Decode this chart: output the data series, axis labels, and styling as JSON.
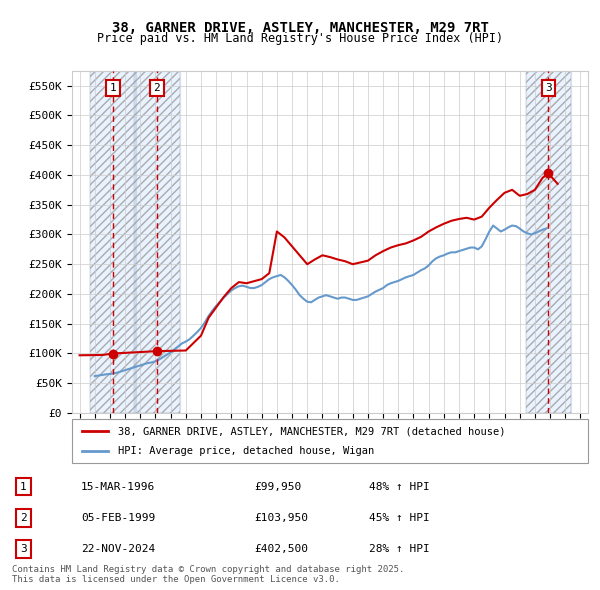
{
  "title": "38, GARNER DRIVE, ASTLEY, MANCHESTER, M29 7RT",
  "subtitle": "Price paid vs. HM Land Registry's House Price Index (HPI)",
  "legend_line1": "38, GARNER DRIVE, ASTLEY, MANCHESTER, M29 7RT (detached house)",
  "legend_line2": "HPI: Average price, detached house, Wigan",
  "sales": [
    {
      "num": 1,
      "date_label": "15-MAR-1996",
      "date_year": 1996.21,
      "price": 99950,
      "pct": "48%",
      "dir": "↑"
    },
    {
      "num": 2,
      "date_label": "05-FEB-1999",
      "date_year": 1999.09,
      "price": 103950,
      "pct": "45%",
      "dir": "↑"
    },
    {
      "num": 3,
      "date_label": "22-NOV-2024",
      "date_year": 2024.89,
      "price": 402500,
      "pct": "28%",
      "dir": "↑"
    }
  ],
  "price_color": "#cc0000",
  "hpi_color": "#6699cc",
  "hatch_color_sale": "#ccddff",
  "hatch_color_gray": "#e8e8e8",
  "grid_color": "#cccccc",
  "dashed_line_color": "#cc0000",
  "background_color": "#ffffff",
  "plot_bg": "#ffffff",
  "ylim": [
    0,
    575000
  ],
  "xlim": [
    1993.5,
    2027.5
  ],
  "yticks": [
    0,
    50000,
    100000,
    150000,
    200000,
    250000,
    300000,
    350000,
    400000,
    450000,
    500000,
    550000
  ],
  "ytick_labels": [
    "£0",
    "£50K",
    "£100K",
    "£150K",
    "£200K",
    "£250K",
    "£300K",
    "£350K",
    "£400K",
    "£450K",
    "£500K",
    "£550K"
  ],
  "footer": "Contains HM Land Registry data © Crown copyright and database right 2025.\nThis data is licensed under the Open Government Licence v3.0.",
  "hpi_data_x": [
    1995.0,
    1995.25,
    1995.5,
    1995.75,
    1996.0,
    1996.25,
    1996.5,
    1996.75,
    1997.0,
    1997.25,
    1997.5,
    1997.75,
    1998.0,
    1998.25,
    1998.5,
    1998.75,
    1999.0,
    1999.25,
    1999.5,
    1999.75,
    2000.0,
    2000.25,
    2000.5,
    2000.75,
    2001.0,
    2001.25,
    2001.5,
    2001.75,
    2002.0,
    2002.25,
    2002.5,
    2002.75,
    2003.0,
    2003.25,
    2003.5,
    2003.75,
    2004.0,
    2004.25,
    2004.5,
    2004.75,
    2005.0,
    2005.25,
    2005.5,
    2005.75,
    2006.0,
    2006.25,
    2006.5,
    2006.75,
    2007.0,
    2007.25,
    2007.5,
    2007.75,
    2008.0,
    2008.25,
    2008.5,
    2008.75,
    2009.0,
    2009.25,
    2009.5,
    2009.75,
    2010.0,
    2010.25,
    2010.5,
    2010.75,
    2011.0,
    2011.25,
    2011.5,
    2011.75,
    2012.0,
    2012.25,
    2012.5,
    2012.75,
    2013.0,
    2013.25,
    2013.5,
    2013.75,
    2014.0,
    2014.25,
    2014.5,
    2014.75,
    2015.0,
    2015.25,
    2015.5,
    2015.75,
    2016.0,
    2016.25,
    2016.5,
    2016.75,
    2017.0,
    2017.25,
    2017.5,
    2017.75,
    2018.0,
    2018.25,
    2018.5,
    2018.75,
    2019.0,
    2019.25,
    2019.5,
    2019.75,
    2020.0,
    2020.25,
    2020.5,
    2020.75,
    2021.0,
    2021.25,
    2021.5,
    2021.75,
    2022.0,
    2022.25,
    2022.5,
    2022.75,
    2023.0,
    2023.25,
    2023.5,
    2023.75,
    2024.0,
    2024.25,
    2024.5,
    2024.75
  ],
  "hpi_data_y": [
    62000,
    63000,
    64000,
    65000,
    65500,
    66500,
    68000,
    70000,
    72000,
    74000,
    76000,
    78000,
    80000,
    82000,
    84000,
    85000,
    87000,
    90000,
    94000,
    98000,
    102000,
    107000,
    112000,
    117000,
    120000,
    124000,
    130000,
    136000,
    143000,
    152000,
    163000,
    172000,
    180000,
    187000,
    194000,
    200000,
    206000,
    210000,
    213000,
    214000,
    212000,
    210000,
    210000,
    212000,
    215000,
    220000,
    225000,
    228000,
    230000,
    232000,
    228000,
    222000,
    215000,
    207000,
    198000,
    192000,
    187000,
    186000,
    190000,
    194000,
    196000,
    198000,
    196000,
    194000,
    192000,
    194000,
    194000,
    192000,
    190000,
    190000,
    192000,
    194000,
    196000,
    200000,
    204000,
    207000,
    210000,
    215000,
    218000,
    220000,
    222000,
    225000,
    228000,
    230000,
    232000,
    236000,
    240000,
    243000,
    248000,
    255000,
    260000,
    263000,
    265000,
    268000,
    270000,
    270000,
    272000,
    274000,
    276000,
    278000,
    278000,
    275000,
    280000,
    292000,
    305000,
    315000,
    310000,
    305000,
    308000,
    312000,
    315000,
    314000,
    310000,
    305000,
    302000,
    300000,
    302000,
    305000,
    308000,
    310000
  ],
  "price_data_x": [
    1994.0,
    1995.5,
    1996.21,
    1999.09,
    2001.0,
    2002.0,
    2002.5,
    2003.5,
    2004.0,
    2004.5,
    2005.0,
    2006.0,
    2006.5,
    2007.0,
    2007.5,
    2008.0,
    2008.5,
    2009.0,
    2009.5,
    2010.0,
    2010.5,
    2011.0,
    2011.5,
    2012.0,
    2013.0,
    2013.5,
    2014.0,
    2014.5,
    2015.0,
    2015.5,
    2016.0,
    2016.5,
    2017.0,
    2017.5,
    2018.0,
    2018.5,
    2019.0,
    2019.5,
    2020.0,
    2020.5,
    2021.0,
    2021.5,
    2022.0,
    2022.5,
    2023.0,
    2023.5,
    2024.0,
    2024.5,
    2024.89,
    2025.5
  ],
  "price_data_y": [
    97000,
    97500,
    99950,
    103950,
    105000,
    130000,
    160000,
    195000,
    210000,
    220000,
    218000,
    225000,
    235000,
    305000,
    295000,
    280000,
    265000,
    250000,
    258000,
    265000,
    262000,
    258000,
    255000,
    250000,
    256000,
    265000,
    272000,
    278000,
    282000,
    285000,
    290000,
    296000,
    305000,
    312000,
    318000,
    323000,
    326000,
    328000,
    325000,
    330000,
    345000,
    358000,
    370000,
    375000,
    365000,
    368000,
    375000,
    395000,
    402500,
    385000
  ]
}
